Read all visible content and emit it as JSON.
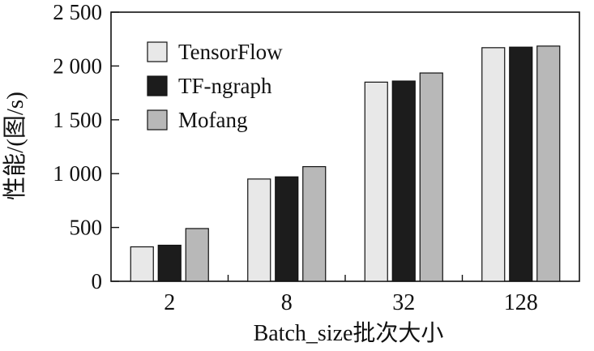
{
  "chart_data": {
    "type": "bar",
    "title": "",
    "xlabel": "Batch_size批次大小",
    "ylabel": "性能/(图/s)",
    "categories": [
      "2",
      "8",
      "32",
      "128"
    ],
    "series": [
      {
        "name": "TensorFlow",
        "values": [
          320,
          950,
          1850,
          2170
        ],
        "color": "#e8e8e8"
      },
      {
        "name": "TF-ngraph",
        "values": [
          335,
          970,
          1860,
          2175
        ],
        "color": "#1c1c1c"
      },
      {
        "name": "Mofang",
        "values": [
          490,
          1065,
          1935,
          2185
        ],
        "color": "#b8b8b8"
      }
    ],
    "ylim": [
      0,
      2500
    ],
    "yticks": [
      0,
      500,
      1000,
      1500,
      2000,
      2500
    ],
    "ytick_labels": [
      "0",
      "500",
      "1 000",
      "1 500",
      "2 000",
      "2 500"
    ],
    "grid": false,
    "legend": "top-left"
  }
}
